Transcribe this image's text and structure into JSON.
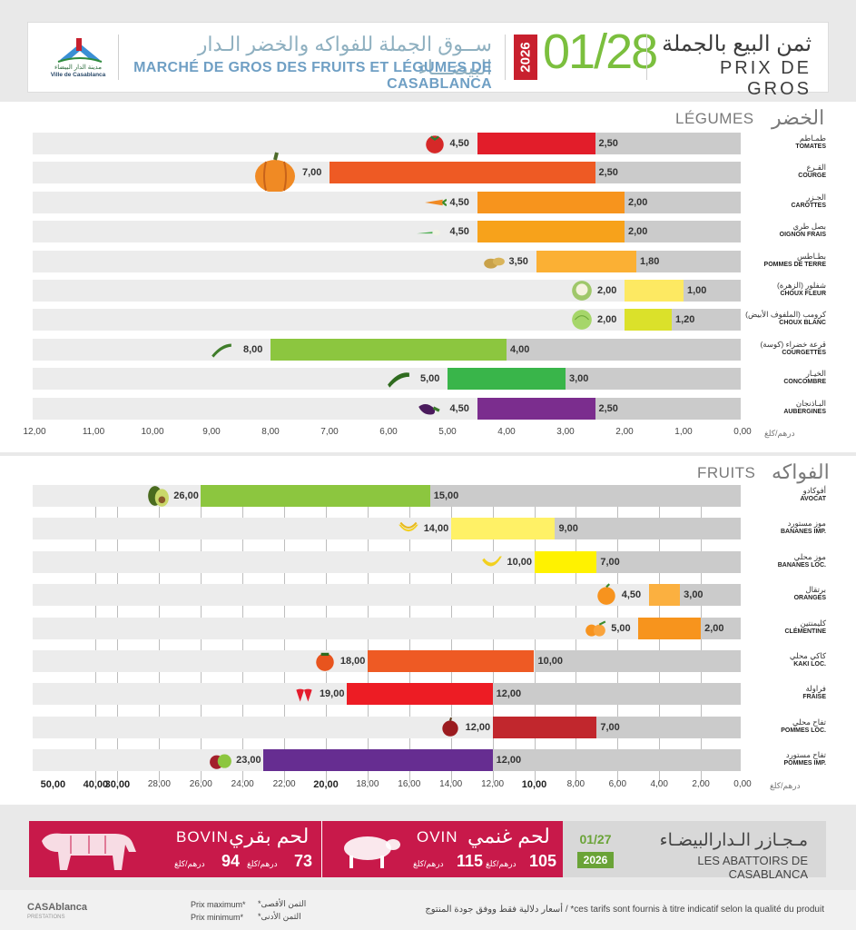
{
  "header": {
    "city_logo_ar": "مدينة الدار البيضاء",
    "city_logo_fr": "Ville de Casablanca",
    "market_ar": "ســوق الجملة للفواكه والخضر الـدار البيضـــاء",
    "market_fr": "MARCHÉ DE GROS DES FRUITS ET LÉGUMES DE CASABLANCA",
    "year": "2026",
    "date": "01/28",
    "title_ar": "ثمن البيع بالجملة",
    "title_fr": "PRIX DE GROS",
    "brand_color": "#7bbf3e",
    "accent_color": "#c8202e"
  },
  "legumes": {
    "title_fr": "LÉGUMES",
    "title_ar": "الخضر",
    "unit": "درهم/كلغ"
  },
  "fruits": {
    "title_fr": "FRUITS",
    "title_ar": "الفواكه",
    "unit": "درهم/كلغ"
  },
  "chart_data": [
    {
      "type": "bar",
      "title": "LÉGUMES",
      "orientation": "horizontal-right-to-left",
      "xlim": [
        0,
        12
      ],
      "tick_labels": [
        "12,00",
        "11,00",
        "10,00",
        "9,00",
        "8,00",
        "7,00",
        "6,00",
        "5,00",
        "4,00",
        "3,00",
        "2,00",
        "1,00",
        "0,00"
      ],
      "unit": "درهم/كلغ",
      "series": [
        {
          "name": "Prix maximum"
        },
        {
          "name": "Prix minimum"
        }
      ],
      "rows": [
        {
          "name_ar": "طمـاطم",
          "name_fr": "TOMATES",
          "max": 4.5,
          "min": 2.5,
          "max_label": "4,50",
          "min_label": "2,50",
          "color": "#e21d2a",
          "icon": "tomato-icon"
        },
        {
          "name_ar": "القـرع",
          "name_fr": "COURGE",
          "max": 7.0,
          "min": 2.5,
          "max_label": "7,00",
          "min_label": "2,50",
          "color": "#ee5a24",
          "icon": "pumpkin-icon"
        },
        {
          "name_ar": "الجـزر",
          "name_fr": "CAROTTES",
          "max": 4.5,
          "min": 2.0,
          "max_label": "4,50",
          "min_label": "2,00",
          "color": "#f7941d",
          "icon": "carrot-icon"
        },
        {
          "name_ar": "بصل طري",
          "name_fr": "OIGNON FRAIS",
          "max": 4.5,
          "min": 2.0,
          "max_label": "4,50",
          "min_label": "2,00",
          "color": "#f7a21b",
          "icon": "spring-onion-icon"
        },
        {
          "name_ar": "بطـاطس",
          "name_fr": "POMMES DE TERRE",
          "max": 3.5,
          "min": 1.8,
          "max_label": "3,50",
          "min_label": "1,80",
          "color": "#fbb034",
          "icon": "potato-icon"
        },
        {
          "name_ar": "شفلور (الزهرة)",
          "name_fr": "CHOUX FLEUR",
          "max": 2.0,
          "min": 1.0,
          "max_label": "2,00",
          "min_label": "1,00",
          "color": "#fde962",
          "icon": "cauliflower-icon"
        },
        {
          "name_ar": "كرومب (الملفوف الأبيض)",
          "name_fr": "CHOUX BLANC",
          "max": 2.0,
          "min": 1.2,
          "max_label": "2,00",
          "min_label": "1,20",
          "color": "#dbe12a",
          "icon": "cabbage-icon"
        },
        {
          "name_ar": "قرعة خضراء (كوسة)",
          "name_fr": "COURGETTES",
          "max": 8.0,
          "min": 4.0,
          "max_label": "8,00",
          "min_label": "4,00",
          "color": "#8cc63f",
          "icon": "zucchini-icon"
        },
        {
          "name_ar": "الخيـار",
          "name_fr": "CONCOMBRE",
          "max": 5.0,
          "min": 3.0,
          "max_label": "5,00",
          "min_label": "3,00",
          "color": "#39b54a",
          "icon": "cucumber-icon"
        },
        {
          "name_ar": "البـاذنجان",
          "name_fr": "AUBERGINES",
          "max": 4.5,
          "min": 2.5,
          "max_label": "4,50",
          "min_label": "2,50",
          "color": "#7b2d8e",
          "icon": "eggplant-icon"
        }
      ]
    },
    {
      "type": "bar",
      "title": "FRUITS",
      "orientation": "horizontal-right-to-left",
      "xlim": [
        0,
        50
      ],
      "tick_labels": [
        "50,00",
        "40,00",
        "30,00",
        "28,00",
        "26,00",
        "24,00",
        "22,00",
        "20,00",
        "18,00",
        "16,00",
        "14,00",
        "12,00",
        "10,00",
        "8,00",
        "6,00",
        "4,00",
        "2,00",
        "0,00"
      ],
      "unit": "درهم/كلغ",
      "series": [
        {
          "name": "Prix maximum"
        },
        {
          "name": "Prix minimum"
        }
      ],
      "rows": [
        {
          "name_ar": "أفوكادو",
          "name_fr": "AVOCAT",
          "max": 26.0,
          "min": 15.0,
          "max_label": "26,00",
          "min_label": "15,00",
          "color": "#8cc63f",
          "icon": "avocado-icon"
        },
        {
          "name_ar": "موز مستورد",
          "name_fr": "BANANES IMP.",
          "max": 14.0,
          "min": 9.0,
          "max_label": "14,00",
          "min_label": "9,00",
          "color": "#fff166",
          "icon": "bananas-icon"
        },
        {
          "name_ar": "موز محلي",
          "name_fr": "BANANES LOC.",
          "max": 10.0,
          "min": 7.0,
          "max_label": "10,00",
          "min_label": "7,00",
          "color": "#fff200",
          "icon": "banana-icon"
        },
        {
          "name_ar": "برتقال",
          "name_fr": "ORANGES",
          "max": 4.5,
          "min": 3.0,
          "max_label": "4,50",
          "min_label": "3,00",
          "color": "#fbb040",
          "icon": "orange-icon"
        },
        {
          "name_ar": "كليمنتين",
          "name_fr": "CLÉMENTINE",
          "max": 5.0,
          "min": 2.0,
          "max_label": "5,00",
          "min_label": "2,00",
          "color": "#f7941d",
          "icon": "clementine-icon"
        },
        {
          "name_ar": "كاكي محلي",
          "name_fr": "KAKI LOC.",
          "max": 18.0,
          "min": 10.0,
          "max_label": "18,00",
          "min_label": "10,00",
          "color": "#ee5a24",
          "icon": "kaki-icon"
        },
        {
          "name_ar": "فراولة",
          "name_fr": "FRAISE",
          "max": 19.0,
          "min": 12.0,
          "max_label": "19,00",
          "min_label": "12,00",
          "color": "#ed1c24",
          "icon": "strawberry-icon"
        },
        {
          "name_ar": "تفاح محلي",
          "name_fr": "POMMES LOC.",
          "max": 12.0,
          "min": 7.0,
          "max_label": "12,00",
          "min_label": "7,00",
          "color": "#c1272d",
          "icon": "apple-icon"
        },
        {
          "name_ar": "تفاح مستورد",
          "name_fr": "POMMES IMP.",
          "max": 23.0,
          "min": 12.0,
          "max_label": "23,00",
          "min_label": "12,00",
          "color": "#662d91",
          "icon": "apples-icon"
        }
      ]
    }
  ],
  "meat": {
    "bovin_fr": "BOVIN",
    "bovin_ar": "لحم بقري",
    "bovin_max": "94",
    "bovin_min": "73",
    "ovin_fr": "OVIN",
    "ovin_ar": "لحم غنمي",
    "ovin_max": "115",
    "ovin_min": "105",
    "unit": "درهم/كلغ",
    "abattoir_date": "01/27",
    "abattoir_year": "2026",
    "abattoir_ar": "مـجـازر الـدارالبيضـاء",
    "abattoir_fr": "LES ABATTOIRS DE CASABLANCA",
    "meat_color": "#c8194a"
  },
  "footer": {
    "logo": "CASAblanca",
    "logo_sub": "PRESTATIONS",
    "legend_max_fr": "Prix maximum*",
    "legend_min_fr": "Prix minimum*",
    "legend_max_ar": "*الثمن الأقصى",
    "legend_min_ar": "*الثمن الأدنى",
    "note": "أسعار دلالية فقط ووفق جودة المنتوج / *ces tarifs sont fournis à titre indicatif selon la qualité du produit"
  }
}
